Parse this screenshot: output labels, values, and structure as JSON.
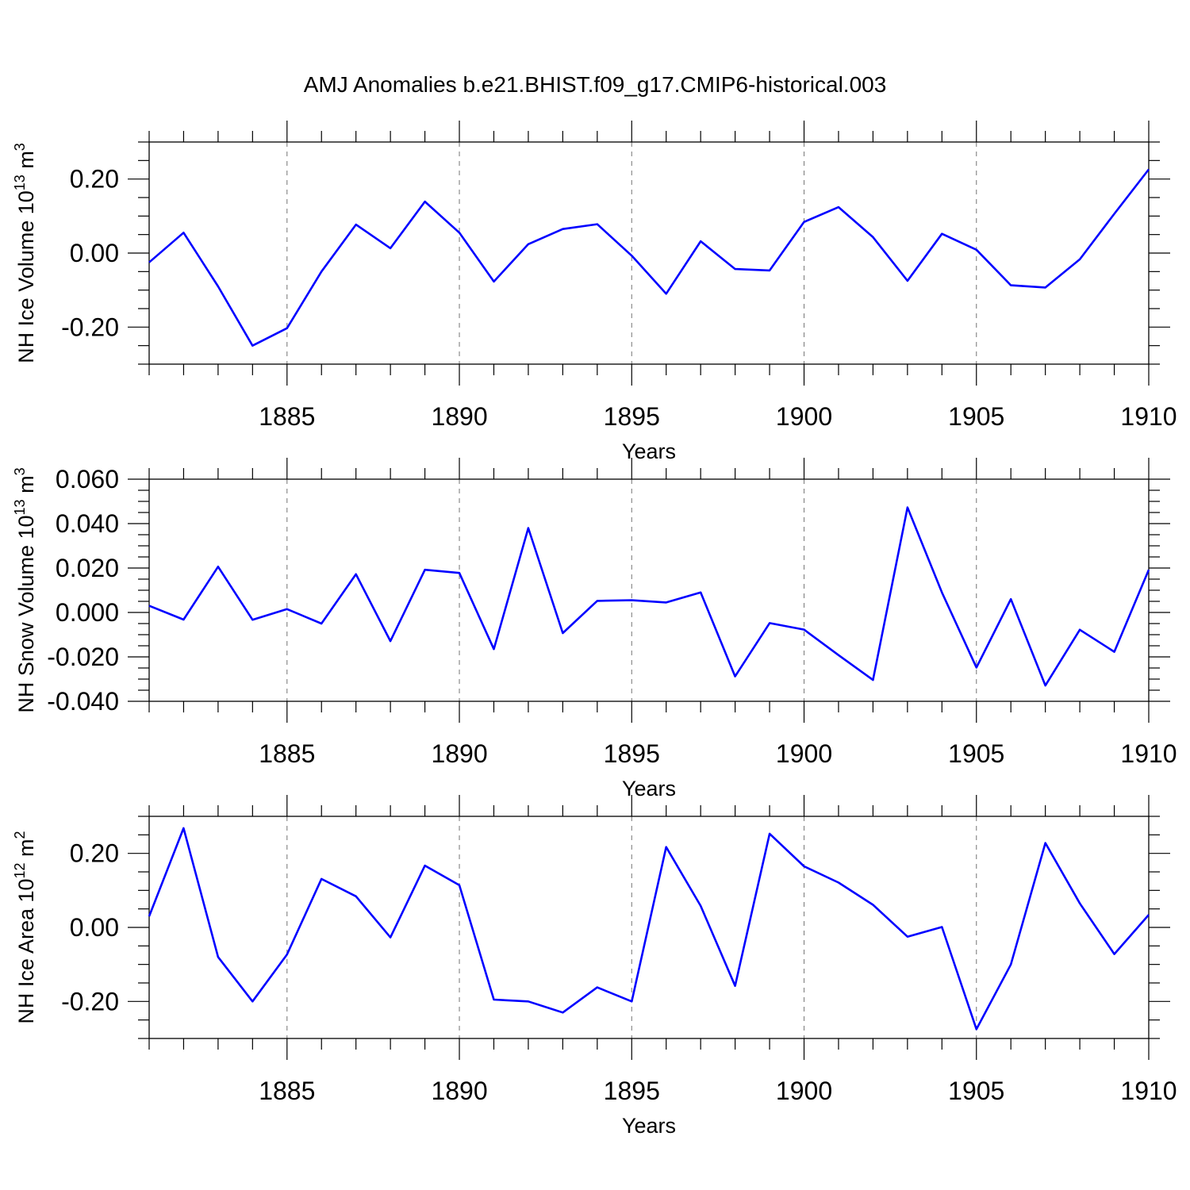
{
  "chart_data": {
    "title": "AMJ Anomalies b.e21.BHIST.f09_g17.CMIP6-historical.003",
    "panels": [
      {
        "type": "line",
        "ylabel": "NH Ice Volume 10",
        "ylabel_exp": "13",
        "ylabel_unit": " m",
        "ylabel_unit_exp": "3",
        "xlabel": "Years",
        "xlim": [
          1881,
          1910
        ],
        "ylim": [
          -0.3,
          0.3
        ],
        "yticks": [
          -0.2,
          0.0,
          0.2
        ],
        "ytick_labels": [
          "-0.20",
          "0.00",
          "0.20"
        ],
        "yminor_step": 0.05,
        "xticks": [
          1885,
          1890,
          1895,
          1900,
          1905,
          1910
        ],
        "xtick_labels": [
          "1885",
          "1890",
          "1895",
          "1900",
          "1905",
          "1910"
        ],
        "grid_x": [
          1885,
          1890,
          1895,
          1900,
          1905
        ],
        "x": [
          1881,
          1882,
          1883,
          1884,
          1885,
          1886,
          1887,
          1888,
          1889,
          1890,
          1891,
          1892,
          1893,
          1894,
          1895,
          1896,
          1897,
          1898,
          1899,
          1900,
          1901,
          1902,
          1903,
          1904,
          1905,
          1906,
          1907,
          1908,
          1909,
          1910
        ],
        "values": [
          -0.025,
          0.055,
          -0.09,
          -0.25,
          -0.203,
          -0.05,
          0.077,
          0.013,
          0.139,
          0.055,
          -0.077,
          0.024,
          0.065,
          0.078,
          -0.007,
          -0.11,
          0.032,
          -0.043,
          -0.047,
          0.084,
          0.124,
          0.043,
          -0.075,
          0.052,
          0.009,
          -0.087,
          -0.093,
          -0.017,
          0.106,
          0.226
        ]
      },
      {
        "type": "line",
        "ylabel": "NH Snow Volume 10",
        "ylabel_exp": "13",
        "ylabel_unit": " m",
        "ylabel_unit_exp": "3",
        "xlabel": "Years",
        "xlim": [
          1881,
          1910
        ],
        "ylim": [
          -0.04,
          0.06
        ],
        "yticks": [
          -0.04,
          -0.02,
          0.0,
          0.02,
          0.04,
          0.06
        ],
        "ytick_labels": [
          "-0.040",
          "-0.020",
          "0.000",
          "0.020",
          "0.040",
          "0.060"
        ],
        "yminor_step": 0.005,
        "xticks": [
          1885,
          1890,
          1895,
          1900,
          1905,
          1910
        ],
        "xtick_labels": [
          "1885",
          "1890",
          "1895",
          "1900",
          "1905",
          "1910"
        ],
        "grid_x": [
          1885,
          1890,
          1895,
          1900,
          1905
        ],
        "x": [
          1881,
          1882,
          1883,
          1884,
          1885,
          1886,
          1887,
          1888,
          1889,
          1890,
          1891,
          1892,
          1893,
          1894,
          1895,
          1896,
          1897,
          1898,
          1899,
          1900,
          1901,
          1902,
          1903,
          1904,
          1905,
          1906,
          1907,
          1908,
          1909,
          1910
        ],
        "values": [
          0.003,
          -0.0032,
          0.0206,
          -0.0033,
          0.0015,
          -0.005,
          0.0172,
          -0.0129,
          0.0192,
          0.0178,
          -0.0165,
          0.038,
          -0.0093,
          0.0052,
          0.0055,
          0.0045,
          0.009,
          -0.0288,
          -0.0048,
          -0.0077,
          -0.0192,
          -0.0304,
          0.0473,
          0.009,
          -0.0248,
          0.006,
          -0.0329,
          -0.0078,
          -0.0177,
          0.0192
        ]
      },
      {
        "type": "line",
        "ylabel": "NH Ice Area 10",
        "ylabel_exp": "12",
        "ylabel_unit": " m",
        "ylabel_unit_exp": "2",
        "xlabel": "Years",
        "xlim": [
          1881,
          1910
        ],
        "ylim": [
          -0.3,
          0.3
        ],
        "yticks": [
          -0.2,
          0.0,
          0.2
        ],
        "ytick_labels": [
          "-0.20",
          "0.00",
          "0.20"
        ],
        "yminor_step": 0.05,
        "xticks": [
          1885,
          1890,
          1895,
          1900,
          1905,
          1910
        ],
        "xtick_labels": [
          "1885",
          "1890",
          "1895",
          "1900",
          "1905",
          "1910"
        ],
        "grid_x": [
          1885,
          1890,
          1895,
          1900,
          1905
        ],
        "x": [
          1881,
          1882,
          1883,
          1884,
          1885,
          1886,
          1887,
          1888,
          1889,
          1890,
          1891,
          1892,
          1893,
          1894,
          1895,
          1896,
          1897,
          1898,
          1899,
          1900,
          1901,
          1902,
          1903,
          1904,
          1905,
          1906,
          1907,
          1908,
          1909,
          1910
        ],
        "values": [
          0.03,
          0.268,
          -0.08,
          -0.2,
          -0.073,
          0.131,
          0.084,
          -0.027,
          0.167,
          0.114,
          -0.195,
          -0.2,
          -0.23,
          -0.162,
          -0.2,
          0.217,
          0.058,
          -0.158,
          0.253,
          0.165,
          0.121,
          0.061,
          -0.025,
          0.001,
          -0.275,
          -0.1,
          0.228,
          0.065,
          -0.072,
          0.034
        ]
      }
    ]
  },
  "style": {
    "line_color": "#0000ff",
    "grid_color": "#808080",
    "frame_color": "#000000"
  }
}
